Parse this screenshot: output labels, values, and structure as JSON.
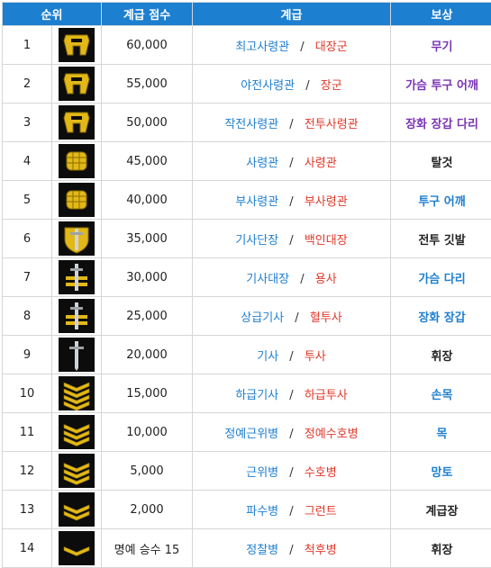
{
  "headers": {
    "rank": "순위",
    "score": "계급 점수",
    "grade": "계급",
    "reward": "보상"
  },
  "separator": "/",
  "colors": {
    "header_bg": "#1c7fd0",
    "blue": "#1f7fd0",
    "red": "#e0392b",
    "purple": "#7a34b4",
    "gold": "#e2b818"
  },
  "rows": [
    {
      "rank": "1",
      "score": "60,000",
      "grade_a": "최고사령관",
      "grade_b": "대장군",
      "reward": "무기",
      "reward_color": "purple",
      "icon": "gold-helmet-icon"
    },
    {
      "rank": "2",
      "score": "55,000",
      "grade_a": "야전사령관",
      "grade_b": "장군",
      "reward": "가슴 투구 어깨",
      "reward_color": "purple",
      "icon": "gold-helmet-icon"
    },
    {
      "rank": "3",
      "score": "50,000",
      "grade_a": "작전사령관",
      "grade_b": "전투사령관",
      "reward": "장화 장갑 다리",
      "reward_color": "purple",
      "icon": "gold-helmet-icon"
    },
    {
      "rank": "4",
      "score": "45,000",
      "grade_a": "사령관",
      "grade_b": "사령관",
      "reward": "탈것",
      "reward_color": "black",
      "icon": "gold-fist-icon"
    },
    {
      "rank": "5",
      "score": "40,000",
      "grade_a": "부사령관",
      "grade_b": "부사령관",
      "reward": "투구 어깨",
      "reward_color": "blue",
      "icon": "gold-fist-icon"
    },
    {
      "rank": "6",
      "score": "35,000",
      "grade_a": "기사단장",
      "grade_b": "백인대장",
      "reward": "전투 깃발",
      "reward_color": "black",
      "icon": "shield-sword-icon"
    },
    {
      "rank": "7",
      "score": "30,000",
      "grade_a": "기사대장",
      "grade_b": "용사",
      "reward": "가슴 다리",
      "reward_color": "blue",
      "icon": "sword-bars-icon"
    },
    {
      "rank": "8",
      "score": "25,000",
      "grade_a": "상급기사",
      "grade_b": "혈투사",
      "reward": "장화 장갑",
      "reward_color": "blue",
      "icon": "sword-bars-icon"
    },
    {
      "rank": "9",
      "score": "20,000",
      "grade_a": "기사",
      "grade_b": "투사",
      "reward": "휘장",
      "reward_color": "black",
      "icon": "sword-icon"
    },
    {
      "rank": "10",
      "score": "15,000",
      "grade_a": "하급기사",
      "grade_b": "하급투사",
      "reward": "손목",
      "reward_color": "blue",
      "icon": "chevron-4-icon"
    },
    {
      "rank": "11",
      "score": "10,000",
      "grade_a": "정예근위병",
      "grade_b": "정예수호병",
      "reward": "목",
      "reward_color": "blue",
      "icon": "chevron-3-icon"
    },
    {
      "rank": "12",
      "score": "5,000",
      "grade_a": "근위병",
      "grade_b": "수호병",
      "reward": "망토",
      "reward_color": "blue",
      "icon": "chevron-3-icon"
    },
    {
      "rank": "13",
      "score": "2,000",
      "grade_a": "파수병",
      "grade_b": "그런트",
      "reward": "계급장",
      "reward_color": "black",
      "icon": "chevron-2-icon"
    },
    {
      "rank": "14",
      "score": "명예 승수 15",
      "grade_a": "정찰병",
      "grade_b": "척후병",
      "reward": "휘장",
      "reward_color": "black",
      "icon": "chevron-1-icon"
    }
  ]
}
